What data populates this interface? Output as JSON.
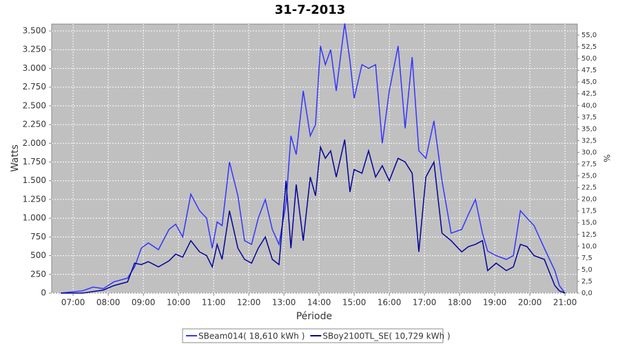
{
  "chart_data": {
    "type": "line",
    "title": "31-7-2013",
    "x_label": "Période",
    "y_label": "Watts",
    "y2_label": "%",
    "x": [
      6.65,
      7.27,
      7.57,
      7.86,
      8.16,
      8.55,
      8.75,
      8.94,
      9.14,
      9.43,
      9.73,
      9.92,
      10.12,
      10.35,
      10.6,
      10.8,
      10.96,
      11.1,
      11.24,
      11.45,
      11.69,
      11.88,
      12.08,
      12.27,
      12.47,
      12.67,
      12.86,
      13.06,
      13.2,
      13.35,
      13.55,
      13.75,
      13.9,
      14.04,
      14.18,
      14.33,
      14.49,
      14.73,
      14.88,
      15.0,
      15.22,
      15.41,
      15.61,
      15.8,
      16.0,
      16.25,
      16.45,
      16.65,
      16.84,
      17.04,
      17.27,
      17.5,
      17.76,
      18.06,
      18.25,
      18.45,
      18.65,
      18.8,
      19.04,
      19.33,
      19.53,
      19.73,
      19.92,
      20.12,
      20.41,
      20.71,
      20.84,
      21.0
    ],
    "series": [
      {
        "name": "SBeam014( 18,610 kWh )",
        "color": "#3333ff",
        "values": [
          0,
          30,
          80,
          60,
          150,
          200,
          350,
          600,
          670,
          580,
          850,
          920,
          750,
          1320,
          1100,
          1000,
          600,
          950,
          900,
          1750,
          1300,
          700,
          650,
          1000,
          1250,
          850,
          650,
          1200,
          2100,
          1850,
          2700,
          2100,
          2250,
          3300,
          3050,
          3250,
          2700,
          3600,
          3100,
          2600,
          3050,
          3000,
          3050,
          2000,
          2700,
          3300,
          2200,
          3150,
          1900,
          1800,
          2300,
          1500,
          800,
          850,
          1050,
          1250,
          800,
          560,
          500,
          450,
          500,
          1100,
          1000,
          900,
          600,
          300,
          100,
          0
        ]
      },
      {
        "name": "SBoy2100TL_SE( 10,729 kWh )",
        "color": "#000099",
        "values": [
          0,
          0,
          20,
          40,
          100,
          150,
          400,
          380,
          420,
          350,
          430,
          520,
          480,
          700,
          550,
          500,
          350,
          650,
          450,
          1100,
          600,
          450,
          400,
          600,
          750,
          450,
          380,
          1500,
          600,
          1450,
          700,
          1550,
          1300,
          1950,
          1800,
          1900,
          1550,
          2050,
          1350,
          1650,
          1600,
          1900,
          1550,
          1700,
          1500,
          1800,
          1750,
          1600,
          550,
          1550,
          1750,
          800,
          700,
          550,
          620,
          650,
          700,
          300,
          400,
          300,
          350,
          650,
          620,
          500,
          450,
          100,
          30,
          0
        ]
      }
    ],
    "xlim": [
      6.39,
      21.35
    ],
    "xticks": [
      {
        "value": 7,
        "label": "07:00"
      },
      {
        "value": 8,
        "label": "08:00"
      },
      {
        "value": 9,
        "label": "09:00"
      },
      {
        "value": 10,
        "label": "10:00"
      },
      {
        "value": 11,
        "label": "11:00"
      },
      {
        "value": 12,
        "label": "12:00"
      },
      {
        "value": 13,
        "label": "13:00"
      },
      {
        "value": 14,
        "label": "14:00"
      },
      {
        "value": 15,
        "label": "15:00"
      },
      {
        "value": 16,
        "label": "16:00"
      },
      {
        "value": 17,
        "label": "17:00"
      },
      {
        "value": 18,
        "label": "18:00"
      },
      {
        "value": 19,
        "label": "19:00"
      },
      {
        "value": 20,
        "label": "20:00"
      },
      {
        "value": 21,
        "label": "21:00"
      }
    ],
    "ylim": [
      0,
      3592
    ],
    "yticks": [
      0,
      {
        "value": 250,
        "label": "250"
      },
      {
        "value": 500,
        "label": "500"
      },
      {
        "value": 750,
        "label": "750"
      },
      {
        "value": 1000,
        "label": "1.000"
      },
      {
        "value": 1250,
        "label": "1.250"
      },
      {
        "value": 1500,
        "label": "1.500"
      },
      {
        "value": 1750,
        "label": "1.750"
      },
      {
        "value": 2000,
        "label": "2.000"
      },
      {
        "value": 2250,
        "label": "2.250"
      },
      {
        "value": 2500,
        "label": "2.500"
      },
      {
        "value": 2750,
        "label": "2.750"
      },
      {
        "value": 3000,
        "label": "3.000"
      },
      {
        "value": 3250,
        "label": "3.250"
      },
      {
        "value": 3500,
        "label": "3.500"
      }
    ],
    "y2lim": [
      0,
      57.35
    ],
    "y2ticks": [
      {
        "value": 0,
        "label": "0,0"
      },
      {
        "value": 2.5,
        "label": "2,5"
      },
      {
        "value": 5,
        "label": "5,0"
      },
      {
        "value": 7.5,
        "label": "7,5"
      },
      {
        "value": 10,
        "label": "10,0"
      },
      {
        "value": 12.5,
        "label": "12,5"
      },
      {
        "value": 15,
        "label": "15,0"
      },
      {
        "value": 17.5,
        "label": "17,5"
      },
      {
        "value": 20,
        "label": "20,0"
      },
      {
        "value": 22.5,
        "label": "22,5"
      },
      {
        "value": 25,
        "label": "25,0"
      },
      {
        "value": 27.5,
        "label": "27,5"
      },
      {
        "value": 30,
        "label": "30,0"
      },
      {
        "value": 32.5,
        "label": "32,5"
      },
      {
        "value": 35,
        "label": "35,0"
      },
      {
        "value": 37.5,
        "label": "37,5"
      },
      {
        "value": 40,
        "label": "40,0"
      },
      {
        "value": 42.5,
        "label": "42,5"
      },
      {
        "value": 45,
        "label": "45,0"
      },
      {
        "value": 47.5,
        "label": "47,5"
      },
      {
        "value": 50,
        "label": "50,0"
      },
      {
        "value": 52.5,
        "label": "52,5"
      },
      {
        "value": 55,
        "label": "55,0"
      }
    ],
    "grid": true,
    "legend": "bottom"
  }
}
